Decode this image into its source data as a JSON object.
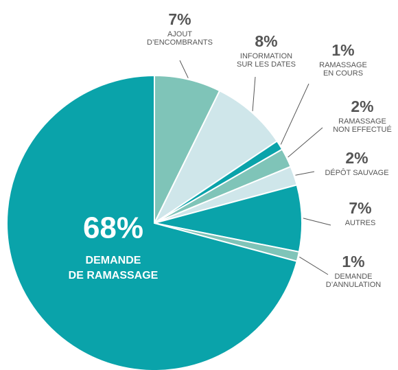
{
  "chart_data": {
    "type": "pie",
    "categories": [
      [
        "AJOUT",
        "D’ENCOMBRANTS"
      ],
      [
        "INFORMATION",
        "SUR LES DATES"
      ],
      [
        "RAMASSAGE",
        "EN COURS"
      ],
      [
        "RAMASSAGE",
        "NON EFFECTUÉ"
      ],
      [
        "DÉPÔT SAUVAGE"
      ],
      [
        "AUTRES"
      ],
      [
        "DEMANDE",
        "D’ANNULATION"
      ],
      [
        "DEMANDE",
        "DE RAMASSAGE"
      ]
    ],
    "values": [
      7,
      8,
      1,
      2,
      2,
      7,
      1,
      68
    ],
    "value_labels": [
      "7%",
      "8%",
      "1%",
      "2%",
      "2%",
      "7%",
      "1%",
      "68%"
    ],
    "colors": [
      "#7fc4b8",
      "#cfe6ea",
      "#0aa3aa",
      "#7fc4b8",
      "#cfe6ea",
      "#0aa3aa",
      "#7fc4b8",
      "#0aa3aa"
    ]
  }
}
